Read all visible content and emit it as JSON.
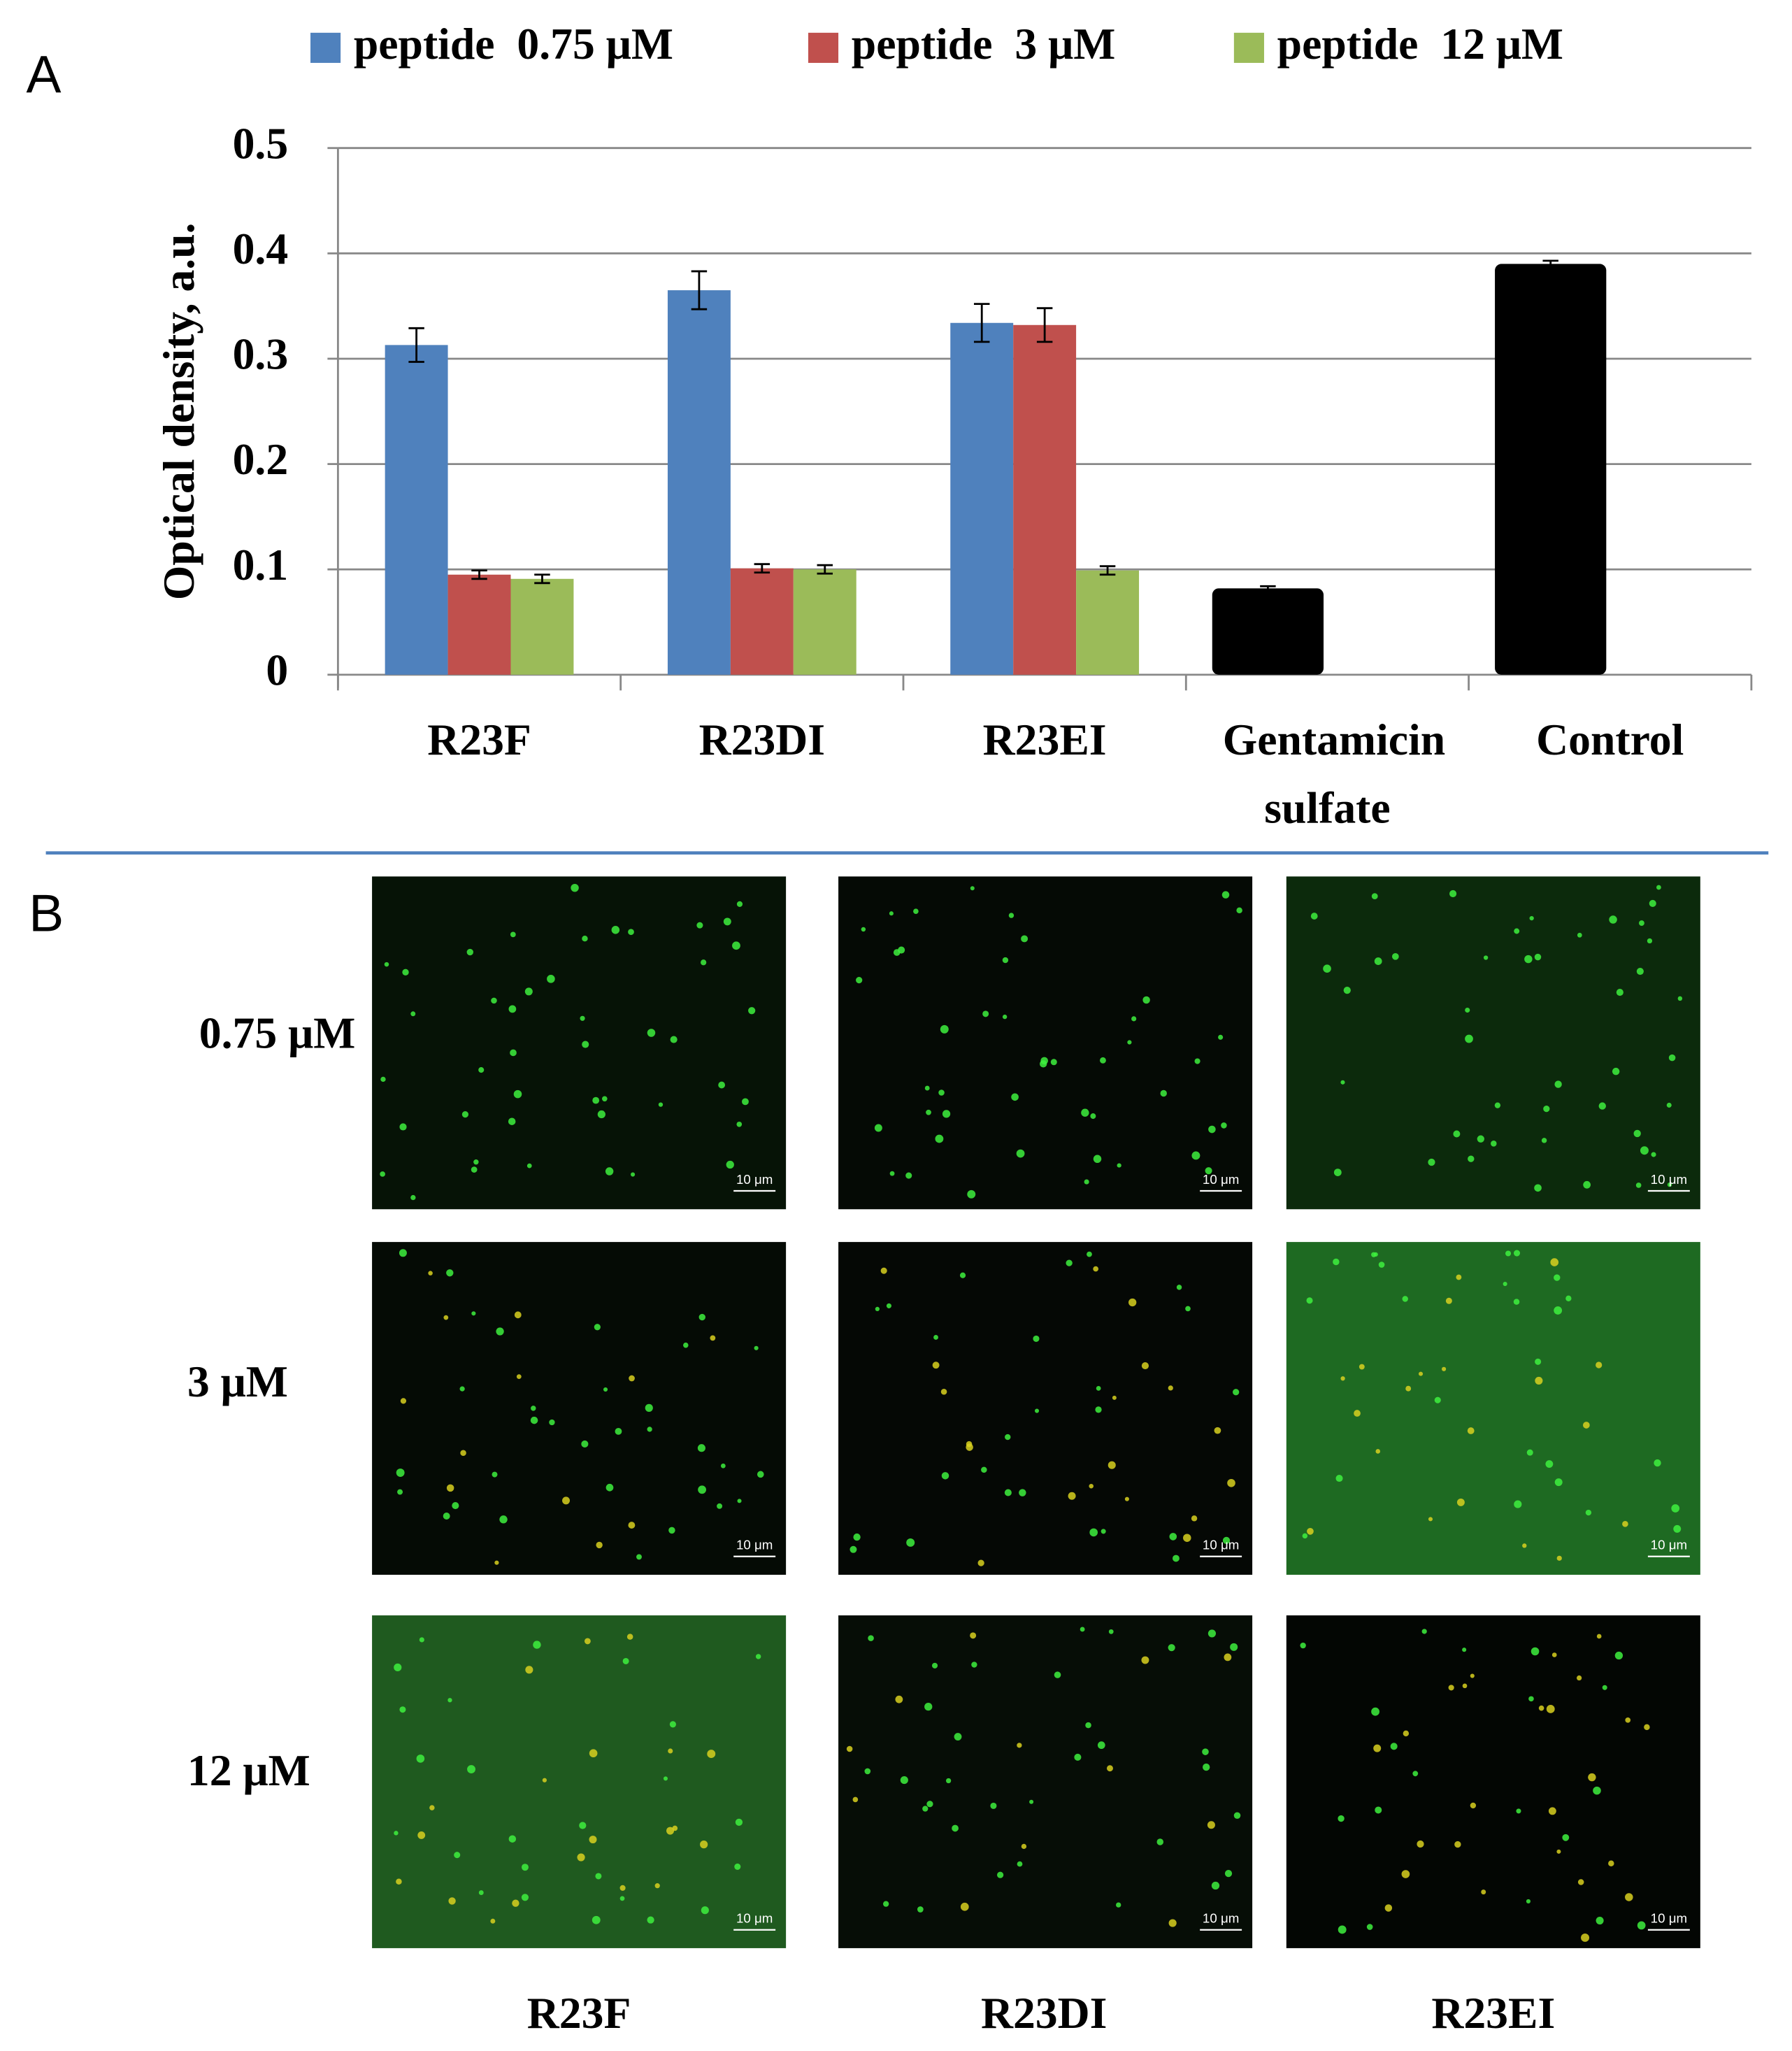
{
  "chart_data": {
    "type": "bar",
    "panel_label": "A",
    "ylabel": "Optical density, a.u.",
    "categories": [
      "R23F",
      "R23DI",
      "R23EI",
      "Gentamicin sulfate",
      "Control"
    ],
    "series": [
      {
        "name": "peptide  0.75 μM",
        "color": "#4f81bd",
        "values": [
          0.313,
          0.365,
          0.334,
          null,
          null
        ],
        "errors": [
          0.016,
          0.018,
          0.018,
          null,
          null
        ]
      },
      {
        "name": "peptide  3 μM",
        "color": "#c0504d",
        "values": [
          0.095,
          0.101,
          0.332,
          null,
          null
        ],
        "errors": [
          0.004,
          0.004,
          0.016,
          null,
          null
        ]
      },
      {
        "name": "peptide  12 μM",
        "color": "#9bbb59",
        "values": [
          0.091,
          0.1,
          0.099,
          null,
          null
        ],
        "errors": [
          0.004,
          0.004,
          0.004,
          null,
          null
        ]
      }
    ],
    "reference_bars": {
      "color": "#000000",
      "values": [
        null,
        null,
        null,
        0.082,
        0.39
      ],
      "errors": [
        null,
        null,
        null,
        0.002,
        0.003
      ]
    },
    "ylim": [
      0,
      0.5
    ],
    "yticks": [
      0,
      0.1,
      0.2,
      0.3,
      0.4,
      0.5
    ],
    "grid": true
  },
  "panel_b": {
    "panel_label": "B",
    "rows": [
      "0.75 μM",
      "3 μM",
      "12 μM"
    ],
    "columns": [
      "R23F",
      "R23DI",
      "R23EI"
    ],
    "scale_bar": "10 μm"
  }
}
